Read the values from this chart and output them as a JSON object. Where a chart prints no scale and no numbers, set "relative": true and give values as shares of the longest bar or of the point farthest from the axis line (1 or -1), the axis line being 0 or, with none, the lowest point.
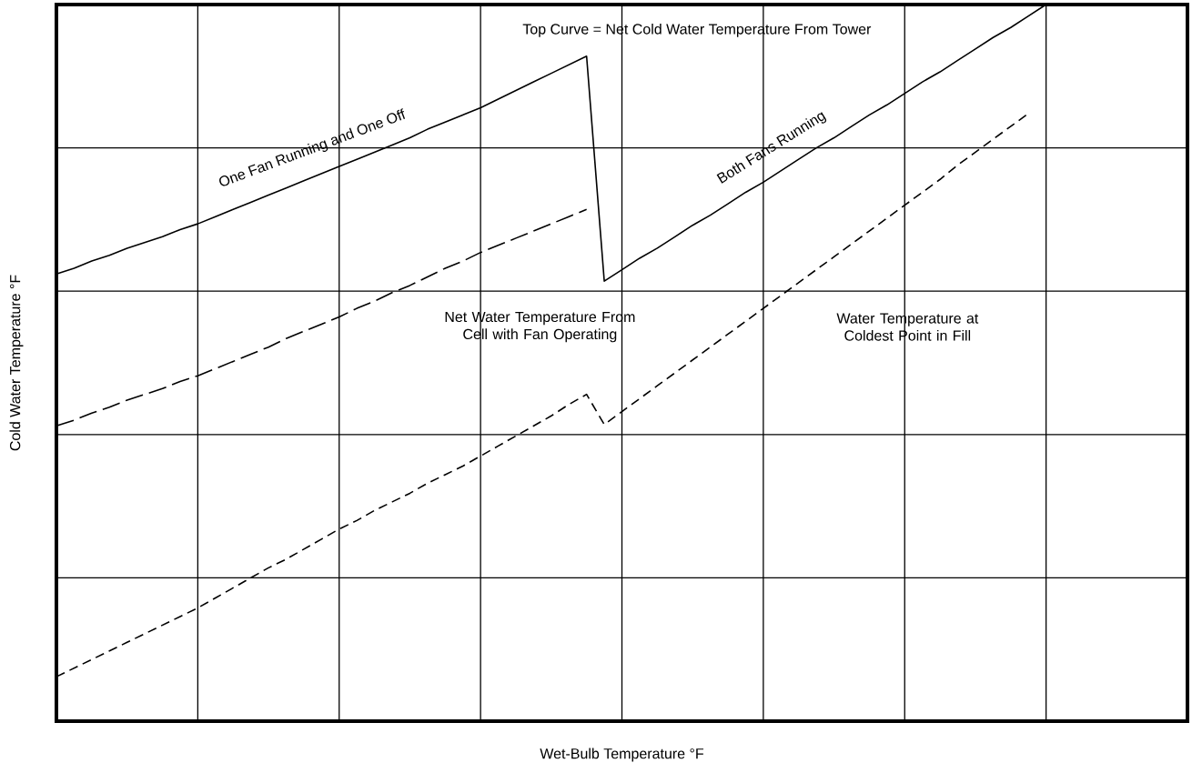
{
  "chart_data": {
    "type": "line",
    "xlabel": "Wet-Bulb Temperature °F",
    "ylabel": "Cold Water Temperature °F",
    "relative": true,
    "categories": [
      null,
      null,
      null,
      null,
      null,
      null,
      null,
      null,
      null,
      null,
      null,
      null,
      null,
      null,
      null,
      null,
      null,
      null,
      null,
      null,
      null,
      null,
      null,
      null,
      null,
      null,
      null,
      null,
      null,
      null,
      null,
      null,
      null,
      null,
      null,
      null,
      null,
      null,
      null,
      null,
      null,
      null,
      null,
      null,
      null,
      null,
      null,
      null,
      null,
      null,
      null,
      null,
      null,
      null,
      null,
      null,
      null,
      null,
      null,
      null,
      null,
      null,
      null,
      null,
      null
    ],
    "grid": true,
    "marker": "none",
    "series": [
      {
        "color": "#000000",
        "line_style": "solid",
        "values": [
          0.624,
          0.632,
          0.642,
          0.65,
          0.66,
          0.668,
          0.676,
          0.686,
          0.694,
          0.704,
          0.714,
          0.724,
          0.734,
          0.744,
          0.754,
          0.764,
          0.774,
          0.784,
          0.794,
          0.804,
          0.814,
          0.826,
          0.836,
          0.846,
          0.856,
          0.868,
          0.88,
          0.892,
          0.904,
          0.916,
          0.928,
          0.614,
          0.63,
          0.646,
          0.66,
          0.676,
          0.692,
          0.706,
          0.722,
          0.738,
          0.752,
          0.768,
          0.784,
          0.8,
          0.814,
          0.83,
          0.846,
          0.86,
          0.876,
          0.892,
          0.906,
          0.922,
          0.938,
          0.954,
          0.968,
          0.984,
          1,
          null,
          null,
          null,
          null,
          null,
          null,
          null,
          null
        ]
      },
      {
        "color": "#000000",
        "line_style": "dashed",
        "values": [
          0.412,
          0.42,
          0.43,
          0.438,
          0.448,
          0.456,
          0.464,
          0.474,
          0.482,
          0.492,
          0.502,
          0.512,
          0.522,
          0.534,
          0.544,
          0.554,
          0.564,
          0.576,
          0.586,
          0.598,
          0.608,
          0.62,
          0.632,
          0.642,
          0.654,
          0.664,
          0.674,
          0.684,
          0.694,
          0.704,
          0.714,
          null,
          null,
          null,
          null,
          null,
          null,
          null,
          null,
          null,
          null,
          null,
          null,
          null,
          null,
          null,
          null,
          null,
          null,
          null,
          null,
          null,
          null,
          null,
          null,
          null,
          null,
          null,
          null,
          null,
          null,
          null,
          null,
          null,
          null
        ]
      },
      {
        "color": "#000000",
        "line_style": "dashed",
        "values": [
          0.062,
          0.074,
          0.086,
          0.098,
          0.11,
          0.122,
          0.134,
          0.146,
          0.158,
          0.172,
          0.186,
          0.2,
          0.214,
          0.226,
          0.24,
          0.254,
          0.268,
          0.28,
          0.294,
          0.306,
          0.318,
          0.332,
          0.344,
          0.356,
          0.37,
          0.384,
          0.398,
          0.412,
          0.426,
          0.442,
          0.456,
          0.414,
          0.432,
          0.45,
          0.468,
          0.486,
          0.504,
          0.522,
          0.54,
          0.558,
          0.576,
          0.594,
          0.612,
          0.63,
          0.648,
          0.666,
          0.684,
          0.702,
          0.72,
          0.738,
          0.756,
          0.776,
          0.794,
          0.812,
          0.83,
          0.848,
          null,
          null,
          null,
          null,
          null,
          null,
          null,
          null,
          null
        ]
      }
    ],
    "annotations": [
      "Top Curve = Net Cold Water Temperature From Tower",
      "One Fan Running and One Off",
      "Both Fans Running",
      "Net Water Temperature From Cell with Fan Operating",
      "Water Temperature at Coldest Point in Fill"
    ]
  }
}
